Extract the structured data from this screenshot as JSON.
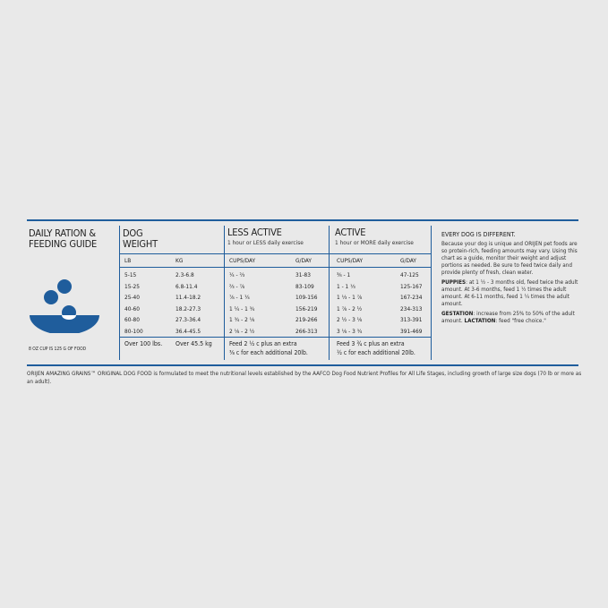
{
  "guide": {
    "title_line1": "DAILY RATION &",
    "title_line2": "FEEDING GUIDE",
    "cup_note": "8 OZ CUP IS 125 G OF FOOD",
    "icon": "food-bowl-icon",
    "accent": "#1f5d9c"
  },
  "dog_weight": {
    "title_line1": "DOG",
    "title_line2": "WEIGHT",
    "col_lb": "LB",
    "col_kg": "KG",
    "lb": [
      "5-15",
      "15-25",
      "25-40",
      "40-60",
      "60-80",
      "80-100"
    ],
    "kg": [
      "2.3-6.8",
      "6.8-11.4",
      "11.4-18.2",
      "18.2-27.3",
      "27.3-36.4",
      "36.4-45.5"
    ],
    "over_lb": "Over 100 lbs.",
    "over_kg": "Over 45.5 kg"
  },
  "less_active": {
    "title": "LESS ACTIVE",
    "subtitle": "1 hour or LESS daily exercise",
    "col_cups": "CUPS/DAY",
    "col_g": "G/DAY",
    "cups": [
      "¼ - ⅔",
      "⅔ - ⅞",
      "⅞ - 1 ¼",
      "1 ¼ - 1 ¾",
      "1 ¾ - 2 ⅛",
      "2 ⅛ - 2 ½"
    ],
    "g": [
      "31-83",
      "83-109",
      "109-156",
      "156-219",
      "219-266",
      "266-313"
    ],
    "extra_line1": "Feed 2 ½ c plus an extra",
    "extra_line2": "⅜ c for each additional 20lb."
  },
  "active": {
    "title": "ACTIVE",
    "subtitle": "1 hour or MORE daily exercise",
    "col_cups": "CUPS/DAY",
    "col_g": "G/DAY",
    "cups": [
      "⅜ - 1",
      "1 - 1 ⅓",
      "1 ⅓ - 1 ⅞",
      "1 ⅞ - 2 ½",
      "2 ½ - 3 ⅛",
      "3 ⅛ - 3 ¾"
    ],
    "g": [
      "47-125",
      "125-167",
      "167-234",
      "234-313",
      "313-391",
      "391-469"
    ],
    "extra_line1": "Feed 3 ¾ c plus an extra",
    "extra_line2": "½ c for each additional 20lb."
  },
  "info": {
    "heading": "EVERY DOG IS DIFFERENT.",
    "para1": "Because your dog is unique and ORIJEN pet foods are so protein-rich, feeding amounts may vary. Using this chart as a guide, monitor their weight and adjust portions as needed. Be sure to feed twice daily and provide plenty of fresh, clean water.",
    "puppies_label": "PUPPIES",
    "puppies_text": ": at 1 ½ - 3 months old, feed twice the adult amount. At 3-6 months, feed 1 ½ times the adult amount. At 6-11 months, feed 1 ¼ times the adult amount.",
    "gestation_label": "GESTATION",
    "gestation_text": ": increase from 25% to 50% of the adult amount. ",
    "lactation_label": "LACTATION",
    "lactation_text": ": feed \"free choice.\""
  },
  "footnote": "ORIJEN AMAZING GRAINS™ ORIGINAL DOG FOOD is formulated to meet the nutritional levels established by the AAFCO Dog Food Nutrient Profiles for All Life Stages, including growth of large size dogs (70 lb or more as an adult)."
}
